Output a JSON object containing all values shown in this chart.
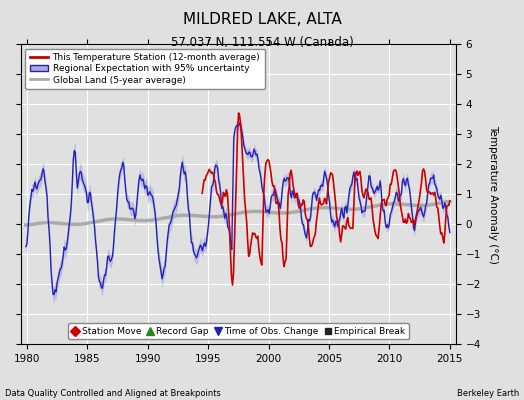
{
  "title": "MILDRED LAKE, ALTA",
  "subtitle": "57.037 N, 111.554 W (Canada)",
  "ylabel": "Temperature Anomaly (°C)",
  "xlabel_left": "Data Quality Controlled and Aligned at Breakpoints",
  "xlabel_right": "Berkeley Earth",
  "xlim": [
    1979.5,
    2015.5
  ],
  "ylim": [
    -4,
    6
  ],
  "yticks": [
    -4,
    -3,
    -2,
    -1,
    0,
    1,
    2,
    3,
    4,
    5,
    6
  ],
  "xticks": [
    1980,
    1985,
    1990,
    1995,
    2000,
    2005,
    2010,
    2015
  ],
  "bg_color": "#e0e0e0",
  "plot_bg_color": "#e0e0e0",
  "grid_color": "#ffffff",
  "red_line_color": "#cc0000",
  "blue_line_color": "#2222bb",
  "blue_fill_color": "#aaaadd",
  "gray_line_color": "#aaaaaa",
  "legend1_items": [
    "This Temperature Station (12-month average)",
    "Regional Expectation with 95% uncertainty",
    "Global Land (5-year average)"
  ],
  "legend2_items": [
    {
      "marker": "D",
      "color": "#cc0000",
      "label": "Station Move"
    },
    {
      "marker": "^",
      "color": "#228822",
      "label": "Record Gap"
    },
    {
      "marker": "v",
      "color": "#2222bb",
      "label": "Time of Obs. Change"
    },
    {
      "marker": "s",
      "color": "#222222",
      "label": "Empirical Break"
    }
  ]
}
